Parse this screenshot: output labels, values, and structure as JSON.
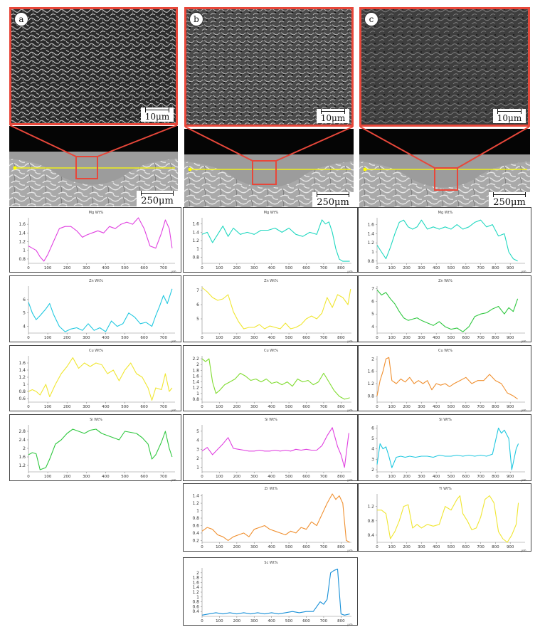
{
  "figure": {
    "panels": [
      {
        "letter": "a",
        "micro_scale": "10μm",
        "weld_scale": "250μm"
      },
      {
        "letter": "b",
        "micro_scale": "10μm",
        "weld_scale": "250μm"
      },
      {
        "letter": "c",
        "micro_scale": "10μm",
        "weld_scale": "250μm"
      }
    ]
  },
  "colors": {
    "frame": "#e8473a",
    "line_scan": "#ffff00",
    "magenta": "#e040e0",
    "cyan": "#20c8e0",
    "yellow": "#f0e630",
    "green": "#30c840",
    "light_green": "#80dc30",
    "orange": "#f09030",
    "teal": "#20d8c0",
    "blue": "#1890d8"
  },
  "x_unit_label": "μm",
  "chart_data": [
    {
      "type": "line",
      "column": 0,
      "row": 0,
      "title": "Mg Wt%",
      "color": "magenta",
      "xlim": [
        0,
        760
      ],
      "xticks": [
        "0",
        "100",
        "200",
        "300",
        "400",
        "500",
        "600",
        "700"
      ],
      "ylim": [
        0.7,
        1.75
      ],
      "yticks": [
        "0.8",
        "1",
        "1.2",
        "1.4",
        "1.6"
      ],
      "x": [
        0,
        20,
        40,
        60,
        80,
        100,
        130,
        160,
        190,
        220,
        250,
        280,
        300,
        330,
        360,
        390,
        420,
        450,
        480,
        510,
        540,
        570,
        600,
        630,
        660,
        690,
        710,
        730,
        745
      ],
      "y": [
        1.1,
        1.05,
        1.0,
        0.85,
        0.75,
        0.9,
        1.2,
        1.5,
        1.55,
        1.55,
        1.45,
        1.3,
        1.35,
        1.4,
        1.45,
        1.4,
        1.55,
        1.5,
        1.6,
        1.65,
        1.6,
        1.75,
        1.5,
        1.1,
        1.05,
        1.4,
        1.7,
        1.5,
        1.05
      ]
    },
    {
      "type": "line",
      "column": 0,
      "row": 1,
      "title": "Zn Wt%",
      "color": "cyan",
      "xlim": [
        0,
        760
      ],
      "xticks": [
        "0",
        "100",
        "200",
        "300",
        "400",
        "500",
        "600",
        "700"
      ],
      "ylim": [
        3.5,
        7.0
      ],
      "yticks": [
        "4",
        "5",
        "6"
      ],
      "x": [
        0,
        20,
        40,
        60,
        90,
        110,
        130,
        160,
        190,
        220,
        250,
        280,
        310,
        340,
        370,
        400,
        430,
        460,
        490,
        520,
        550,
        580,
        610,
        640,
        660,
        680,
        700,
        720,
        745
      ],
      "y": [
        5.8,
        5.0,
        4.5,
        4.8,
        5.3,
        5.7,
        4.9,
        4.0,
        3.6,
        3.8,
        3.9,
        3.7,
        4.2,
        3.7,
        3.9,
        3.6,
        4.4,
        4.0,
        4.2,
        5.0,
        4.7,
        4.2,
        4.3,
        4.0,
        4.8,
        5.5,
        6.3,
        5.7,
        6.8
      ]
    },
    {
      "type": "line",
      "column": 0,
      "row": 2,
      "title": "Cu Wt%",
      "color": "yellow",
      "xlim": [
        0,
        760
      ],
      "xticks": [
        "0",
        "100",
        "200",
        "300",
        "400",
        "500",
        "600",
        "700"
      ],
      "ylim": [
        0.5,
        1.8
      ],
      "yticks": [
        "0.6",
        "0.8",
        "1",
        "1.2",
        "1.4",
        "1.6"
      ],
      "x": [
        0,
        20,
        40,
        60,
        90,
        110,
        140,
        170,
        200,
        230,
        260,
        290,
        320,
        350,
        380,
        410,
        440,
        470,
        500,
        530,
        560,
        590,
        620,
        640,
        660,
        690,
        710,
        730,
        745
      ],
      "y": [
        0.8,
        0.85,
        0.8,
        0.7,
        1.0,
        0.65,
        1.0,
        1.3,
        1.5,
        1.75,
        1.45,
        1.6,
        1.5,
        1.6,
        1.55,
        1.3,
        1.4,
        1.1,
        1.4,
        1.6,
        1.3,
        1.2,
        0.9,
        0.55,
        0.9,
        0.85,
        1.3,
        0.8,
        0.9
      ]
    },
    {
      "type": "line",
      "column": 0,
      "row": 3,
      "title": "Si Wt%",
      "color": "green",
      "xlim": [
        0,
        760
      ],
      "xticks": [
        "0",
        "100",
        "200",
        "300",
        "400",
        "500",
        "600",
        "700"
      ],
      "ylim": [
        0.9,
        3.1
      ],
      "yticks": [
        "1.2",
        "1.6",
        "2",
        "2.4",
        "2.8"
      ],
      "x": [
        0,
        20,
        40,
        60,
        90,
        110,
        140,
        170,
        200,
        230,
        260,
        290,
        320,
        350,
        380,
        410,
        440,
        470,
        500,
        530,
        560,
        590,
        620,
        640,
        660,
        690,
        710,
        730,
        745
      ],
      "y": [
        1.7,
        1.8,
        1.75,
        1.0,
        1.1,
        1.5,
        2.2,
        2.4,
        2.7,
        2.9,
        2.8,
        2.7,
        2.85,
        2.9,
        2.7,
        2.6,
        2.5,
        2.4,
        2.8,
        2.75,
        2.7,
        2.5,
        2.2,
        1.5,
        1.7,
        2.3,
        2.8,
        2.0,
        1.6
      ]
    },
    {
      "type": "line",
      "column": 1,
      "row": 0,
      "title": "Mg Wt%",
      "color": "teal",
      "xlim": [
        0,
        860
      ],
      "xticks": [
        "0",
        "100",
        "200",
        "300",
        "400",
        "500",
        "600",
        "700",
        "800"
      ],
      "ylim": [
        0.65,
        1.75
      ],
      "yticks": [
        "0.8",
        "1",
        "1.2",
        "1.4",
        "1.6"
      ],
      "x": [
        0,
        30,
        60,
        90,
        120,
        150,
        180,
        220,
        260,
        300,
        340,
        380,
        420,
        460,
        500,
        540,
        580,
        620,
        660,
        690,
        710,
        730,
        750,
        770,
        790,
        810,
        830,
        850
      ],
      "y": [
        1.35,
        1.4,
        1.15,
        1.35,
        1.55,
        1.3,
        1.5,
        1.35,
        1.4,
        1.35,
        1.45,
        1.45,
        1.5,
        1.4,
        1.5,
        1.35,
        1.3,
        1.4,
        1.35,
        1.7,
        1.6,
        1.65,
        1.4,
        1.0,
        0.75,
        0.7,
        0.7,
        0.7
      ]
    },
    {
      "type": "line",
      "column": 1,
      "row": 1,
      "title": "Zn Wt%",
      "color": "yellow",
      "xlim": [
        0,
        860
      ],
      "xticks": [
        "0",
        "100",
        "200",
        "300",
        "400",
        "500",
        "600",
        "700",
        "800"
      ],
      "ylim": [
        4.0,
        7.3
      ],
      "yticks": [
        "5",
        "6",
        "7"
      ],
      "x": [
        0,
        30,
        60,
        90,
        120,
        150,
        180,
        210,
        240,
        270,
        300,
        330,
        360,
        390,
        420,
        450,
        480,
        510,
        540,
        570,
        600,
        630,
        660,
        690,
        720,
        750,
        780,
        810,
        840,
        855
      ],
      "y": [
        7.2,
        6.9,
        6.5,
        6.3,
        6.4,
        6.7,
        5.5,
        4.8,
        4.3,
        4.4,
        4.4,
        4.6,
        4.3,
        4.5,
        4.4,
        4.3,
        4.7,
        4.3,
        4.4,
        4.6,
        5.0,
        5.2,
        5.0,
        5.4,
        6.5,
        5.8,
        6.7,
        6.5,
        6.0,
        7.1
      ]
    },
    {
      "type": "line",
      "column": 1,
      "row": 2,
      "title": "Cu Wt%",
      "color": "light_green",
      "xlim": [
        0,
        860
      ],
      "xticks": [
        "0",
        "100",
        "200",
        "300",
        "400",
        "500",
        "600",
        "700",
        "800"
      ],
      "ylim": [
        0.7,
        2.3
      ],
      "yticks": [
        "0.8",
        "1",
        "1.2",
        "1.4",
        "1.6",
        "1.8",
        "2",
        "2.2"
      ],
      "x": [
        0,
        20,
        40,
        60,
        80,
        100,
        130,
        160,
        190,
        220,
        250,
        280,
        310,
        340,
        370,
        400,
        430,
        460,
        490,
        520,
        550,
        580,
        610,
        640,
        670,
        700,
        730,
        760,
        790,
        820,
        850
      ],
      "y": [
        2.2,
        2.1,
        2.2,
        1.4,
        1.0,
        1.1,
        1.3,
        1.4,
        1.5,
        1.7,
        1.6,
        1.45,
        1.5,
        1.4,
        1.5,
        1.35,
        1.4,
        1.3,
        1.4,
        1.25,
        1.5,
        1.4,
        1.45,
        1.3,
        1.4,
        1.7,
        1.4,
        1.1,
        0.9,
        0.8,
        0.85
      ]
    },
    {
      "type": "line",
      "column": 1,
      "row": 3,
      "title": "Si Wt%",
      "color": "magenta",
      "xlim": [
        0,
        860
      ],
      "xticks": [
        "0",
        "100",
        "200",
        "300",
        "400",
        "500",
        "600",
        "700",
        "800"
      ],
      "ylim": [
        0.5,
        5.7
      ],
      "yticks": [
        "1",
        "2",
        "3",
        "4",
        "5"
      ],
      "x": [
        0,
        30,
        60,
        90,
        120,
        150,
        180,
        210,
        240,
        270,
        300,
        330,
        360,
        390,
        420,
        450,
        480,
        510,
        540,
        570,
        600,
        630,
        660,
        690,
        720,
        750,
        780,
        800,
        820,
        845
      ],
      "y": [
        2.8,
        3.2,
        2.4,
        3.0,
        3.6,
        4.3,
        3.1,
        3.0,
        2.9,
        2.8,
        2.8,
        2.9,
        2.8,
        2.8,
        2.9,
        2.8,
        2.9,
        2.8,
        3.0,
        2.9,
        3.0,
        2.9,
        2.9,
        3.4,
        4.5,
        5.4,
        3.3,
        2.4,
        1.0,
        4.8
      ]
    },
    {
      "type": "line",
      "column": 1,
      "row": 4,
      "title": "Zr Wt%",
      "color": "orange",
      "xlim": [
        0,
        860
      ],
      "xticks": [
        "0",
        "100",
        "200",
        "300",
        "400",
        "500",
        "600",
        "700",
        "800"
      ],
      "ylim": [
        0.15,
        1.45
      ],
      "yticks": [
        "0.2",
        "0.4",
        "0.6",
        "0.8",
        "1",
        "1.2",
        "1.4"
      ],
      "x": [
        0,
        30,
        60,
        90,
        120,
        150,
        180,
        210,
        240,
        270,
        300,
        330,
        360,
        390,
        420,
        450,
        480,
        510,
        540,
        570,
        600,
        630,
        660,
        690,
        720,
        750,
        770,
        790,
        810,
        830,
        850
      ],
      "y": [
        0.45,
        0.55,
        0.5,
        0.35,
        0.3,
        0.2,
        0.3,
        0.35,
        0.4,
        0.3,
        0.5,
        0.55,
        0.6,
        0.5,
        0.45,
        0.4,
        0.35,
        0.45,
        0.4,
        0.55,
        0.5,
        0.7,
        0.6,
        0.9,
        1.2,
        1.45,
        1.3,
        1.4,
        1.2,
        0.2,
        0.15
      ]
    },
    {
      "type": "line",
      "column": 1,
      "row": 5,
      "title": "Sc Wt%",
      "color": "blue",
      "xlim": [
        0,
        860
      ],
      "xticks": [
        "0",
        "100",
        "200",
        "300",
        "400",
        "500",
        "600",
        "700",
        "800"
      ],
      "ylim": [
        0.2,
        2.2
      ],
      "yticks": [
        "0.4",
        "0.6",
        "0.8",
        "1",
        "1.2",
        "1.4",
        "1.6",
        "1.8",
        "2"
      ],
      "x": [
        0,
        40,
        80,
        120,
        160,
        200,
        240,
        280,
        320,
        360,
        400,
        440,
        480,
        520,
        560,
        600,
        640,
        680,
        700,
        720,
        740,
        760,
        780,
        800,
        820,
        850
      ],
      "y": [
        0.25,
        0.3,
        0.35,
        0.3,
        0.35,
        0.3,
        0.35,
        0.3,
        0.35,
        0.3,
        0.35,
        0.3,
        0.35,
        0.4,
        0.35,
        0.4,
        0.4,
        0.8,
        0.7,
        0.9,
        2.0,
        2.1,
        2.15,
        0.3,
        0.25,
        0.3
      ]
    },
    {
      "type": "line",
      "column": 2,
      "row": 0,
      "title": "Mg Wt%",
      "color": "teal",
      "xlim": [
        0,
        1000
      ],
      "xticks": [
        "0",
        "100",
        "200",
        "300",
        "400",
        "500",
        "600",
        "700",
        "800",
        "900"
      ],
      "ylim": [
        0.75,
        1.75
      ],
      "yticks": [
        "0.8",
        "1",
        "1.2",
        "1.4",
        "1.6"
      ],
      "x": [
        0,
        30,
        60,
        90,
        120,
        150,
        180,
        210,
        240,
        270,
        300,
        340,
        380,
        420,
        460,
        500,
        540,
        580,
        620,
        660,
        700,
        740,
        780,
        820,
        860,
        890,
        920,
        950
      ],
      "y": [
        1.15,
        1.0,
        0.85,
        1.1,
        1.4,
        1.65,
        1.7,
        1.55,
        1.5,
        1.55,
        1.7,
        1.5,
        1.55,
        1.5,
        1.55,
        1.5,
        1.6,
        1.5,
        1.55,
        1.65,
        1.7,
        1.55,
        1.6,
        1.35,
        1.4,
        1.0,
        0.85,
        0.8
      ]
    },
    {
      "type": "line",
      "column": 2,
      "row": 1,
      "title": "Zn Wt%",
      "color": "green",
      "xlim": [
        0,
        1000
      ],
      "xticks": [
        "0",
        "100",
        "200",
        "300",
        "400",
        "500",
        "600",
        "700",
        "800",
        "900"
      ],
      "ylim": [
        3.5,
        7.2
      ],
      "yticks": [
        "4",
        "5",
        "6",
        "7"
      ],
      "x": [
        0,
        30,
        60,
        90,
        120,
        150,
        180,
        210,
        240,
        270,
        300,
        340,
        380,
        420,
        460,
        500,
        540,
        580,
        620,
        660,
        700,
        740,
        780,
        820,
        860,
        890,
        920,
        950
      ],
      "y": [
        6.9,
        6.5,
        6.7,
        6.2,
        5.8,
        5.2,
        4.7,
        4.5,
        4.6,
        4.7,
        4.5,
        4.3,
        4.1,
        4.4,
        4.0,
        3.8,
        3.9,
        3.6,
        4.0,
        4.8,
        5.0,
        5.1,
        5.4,
        5.6,
        5.0,
        5.5,
        5.2,
        6.2
      ]
    },
    {
      "type": "line",
      "column": 2,
      "row": 2,
      "title": "Cu Wt%",
      "color": "orange",
      "xlim": [
        0,
        1000
      ],
      "xticks": [
        "0",
        "100",
        "200",
        "300",
        "400",
        "500",
        "600",
        "700",
        "800",
        "900"
      ],
      "ylim": [
        0.6,
        2.1
      ],
      "yticks": [
        "0.8",
        "1.2",
        "1.6",
        "2"
      ],
      "x": [
        0,
        20,
        40,
        60,
        80,
        100,
        130,
        160,
        190,
        220,
        250,
        280,
        310,
        340,
        370,
        400,
        430,
        460,
        490,
        520,
        560,
        600,
        640,
        680,
        720,
        760,
        800,
        840,
        880,
        920,
        950
      ],
      "y": [
        0.8,
        1.3,
        1.6,
        2.0,
        2.05,
        1.3,
        1.2,
        1.35,
        1.25,
        1.4,
        1.2,
        1.3,
        1.2,
        1.3,
        1.0,
        1.2,
        1.15,
        1.2,
        1.1,
        1.2,
        1.3,
        1.4,
        1.2,
        1.3,
        1.3,
        1.5,
        1.3,
        1.2,
        0.9,
        0.8,
        0.7
      ]
    },
    {
      "type": "line",
      "column": 2,
      "row": 3,
      "title": "Si Wt%",
      "color": "cyan",
      "xlim": [
        0,
        1000
      ],
      "xticks": [
        "0",
        "100",
        "200",
        "300",
        "400",
        "500",
        "600",
        "700",
        "800",
        "900"
      ],
      "ylim": [
        1.8,
        6.3
      ],
      "yticks": [
        "2",
        "3",
        "4",
        "5",
        "6"
      ],
      "x": [
        0,
        20,
        40,
        60,
        80,
        100,
        130,
        160,
        190,
        220,
        260,
        300,
        340,
        380,
        420,
        460,
        500,
        540,
        580,
        620,
        660,
        700,
        740,
        780,
        820,
        840,
        860,
        890,
        910,
        940,
        955
      ],
      "y": [
        2.5,
        4.5,
        4.0,
        4.2,
        3.3,
        2.2,
        3.2,
        3.3,
        3.2,
        3.3,
        3.2,
        3.3,
        3.3,
        3.2,
        3.4,
        3.3,
        3.3,
        3.4,
        3.3,
        3.4,
        3.3,
        3.4,
        3.3,
        3.5,
        6.0,
        5.5,
        5.8,
        5.0,
        2.0,
        4.0,
        4.5
      ]
    },
    {
      "type": "line",
      "column": 2,
      "row": 4,
      "title": "Ti Wt%",
      "color": "yellow",
      "xlim": [
        0,
        1000
      ],
      "xticks": [
        "0",
        "100",
        "200",
        "300",
        "400",
        "500",
        "600",
        "700",
        "800",
        "900"
      ],
      "ylim": [
        0.2,
        1.55
      ],
      "yticks": [
        "0.4",
        "0.8",
        "1.2"
      ],
      "x": [
        0,
        30,
        60,
        90,
        120,
        150,
        180,
        210,
        240,
        270,
        300,
        340,
        380,
        420,
        460,
        500,
        540,
        560,
        580,
        610,
        640,
        670,
        700,
        730,
        760,
        790,
        820,
        850,
        880,
        910,
        940,
        955
      ],
      "y": [
        1.1,
        1.1,
        1.0,
        0.3,
        0.5,
        0.8,
        1.2,
        1.25,
        0.6,
        0.7,
        0.6,
        0.7,
        0.65,
        0.7,
        1.2,
        1.1,
        1.4,
        1.5,
        1.0,
        0.8,
        0.55,
        0.6,
        0.9,
        1.4,
        1.5,
        1.3,
        0.5,
        0.3,
        0.2,
        0.4,
        0.7,
        1.3
      ]
    }
  ]
}
